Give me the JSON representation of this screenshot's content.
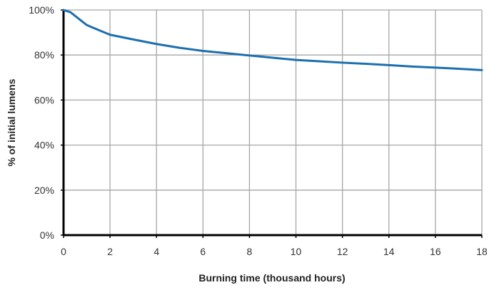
{
  "chart_data": {
    "type": "line",
    "title": "",
    "xlabel": "Burning time (thousand hours)",
    "ylabel": "% of initial lumens",
    "xlim": [
      0,
      18
    ],
    "ylim": [
      0,
      100
    ],
    "x_ticks": [
      "0",
      "2",
      "4",
      "6",
      "8",
      "10",
      "12",
      "14",
      "16",
      "18"
    ],
    "y_ticks": [
      "0%",
      "20%",
      "40%",
      "60%",
      "80%",
      "100%"
    ],
    "grid": true,
    "legend": "none",
    "series": [
      {
        "color": "#1c6fb0",
        "x": [
          0,
          0.3,
          1,
          2,
          3,
          4,
          5,
          6,
          7,
          8,
          9,
          10,
          11,
          12,
          13,
          14,
          15,
          16,
          17,
          18
        ],
        "y": [
          100,
          99,
          93.3,
          89,
          86.9,
          84.9,
          83.2,
          81.8,
          80.8,
          79.8,
          78.8,
          77.8,
          77.2,
          76.6,
          76.1,
          75.5,
          74.9,
          74.4,
          73.9,
          73.3
        ]
      }
    ]
  }
}
